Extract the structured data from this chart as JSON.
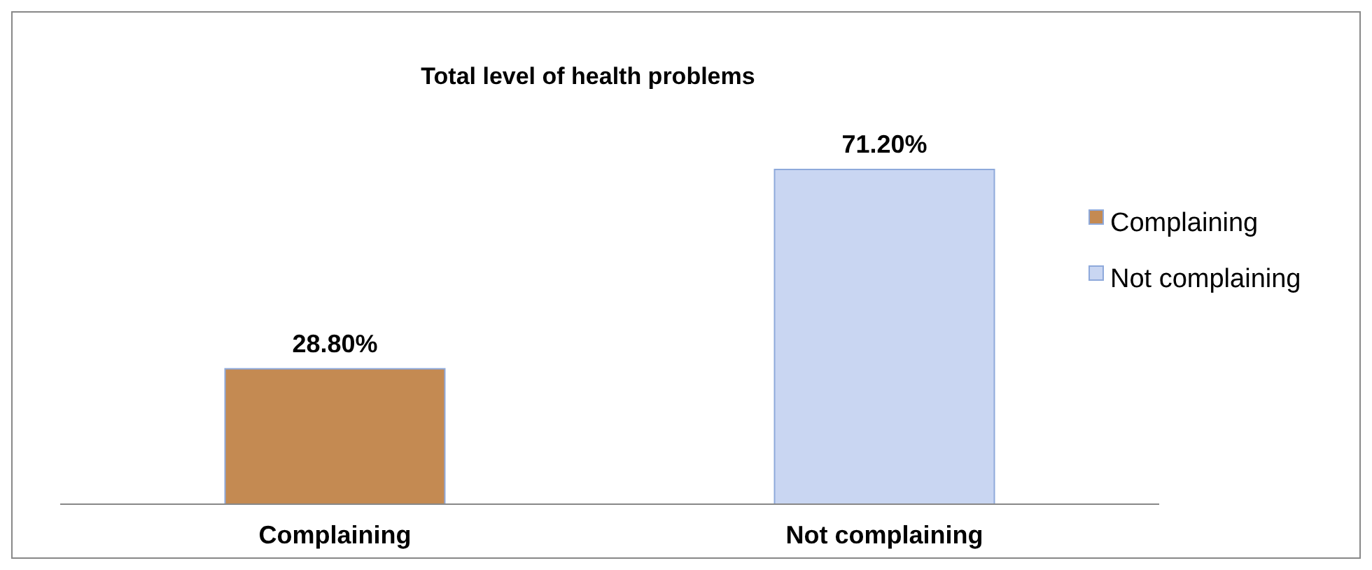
{
  "chart_data": {
    "type": "bar",
    "title": "Total level of health problems",
    "categories": [
      "Complaining",
      "Not complaining"
    ],
    "series": [
      {
        "name": "Complaining",
        "color": "#c48a52",
        "values": [
          28.8,
          null
        ],
        "value_labels": [
          "28.80%",
          null
        ]
      },
      {
        "name": "Not complaining",
        "color": "#c9d6f2",
        "values": [
          null,
          71.2
        ],
        "value_labels": [
          null,
          "71.20%"
        ]
      }
    ],
    "legend": "right"
  }
}
